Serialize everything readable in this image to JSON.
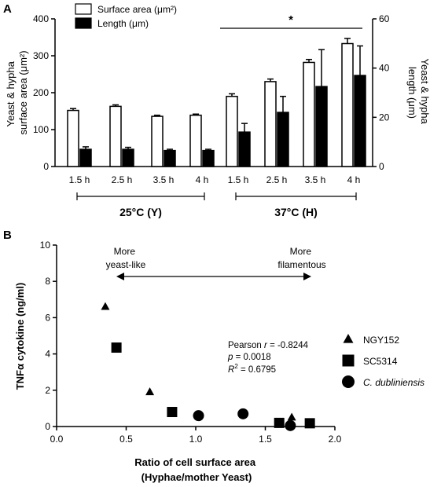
{
  "chart_data": [
    {
      "panel": "A",
      "type": "bar",
      "categories": [
        "1.5 h",
        "2.5 h",
        "3.5 h",
        "4 h",
        "1.5 h",
        "2.5 h",
        "3.5 h",
        "4 h"
      ],
      "groups": [
        {
          "label": "25°C (Y)",
          "from": 0,
          "to": 3
        },
        {
          "label": "37°C (H)",
          "from": 4,
          "to": 7
        }
      ],
      "series": [
        {
          "name": "Surface area (μm²)",
          "axis": "left",
          "fill": "#ffffff",
          "values": [
            152,
            163,
            136,
            139,
            190,
            230,
            282,
            333
          ],
          "errors": [
            5,
            4,
            3,
            3,
            7,
            7,
            8,
            14
          ]
        },
        {
          "name": "Length (μm)",
          "axis": "right",
          "fill": "#000000",
          "values": [
            7,
            7,
            6.5,
            6.5,
            14,
            22,
            32.5,
            37
          ],
          "errors": [
            1,
            0.8,
            0.5,
            0.5,
            3.5,
            6.5,
            15,
            12
          ]
        }
      ],
      "ylabel_left": [
        "Yeast & hypha",
        "surface area (μm²)"
      ],
      "ylabel_right": [
        "Yeast & hypha",
        "length (μm)"
      ],
      "ylim_left": [
        0,
        400
      ],
      "ylim_right": [
        0,
        60
      ],
      "yticks_left": [
        "0",
        "100",
        "200",
        "300",
        "400"
      ],
      "yticks_right": [
        "0",
        "20",
        "40",
        "60"
      ],
      "significance": {
        "symbol": "*",
        "from": 4,
        "to": 7
      },
      "legend": {
        "position": "top-left",
        "entries": [
          "Surface area (μm²)",
          "Length (μm)"
        ]
      },
      "grid": false
    },
    {
      "panel": "B",
      "type": "scatter",
      "xlabel": [
        "Ratio of cell surface area",
        "(Hyphae/mother Yeast)"
      ],
      "ylabel": "TNFα cytokine (ng/ml)",
      "xlim": [
        0,
        2
      ],
      "ylim": [
        0,
        10
      ],
      "xticks": [
        "0.0",
        "0.5",
        "1.0",
        "1.5",
        "2.0"
      ],
      "yticks": [
        "0",
        "2",
        "4",
        "6",
        "8",
        "10"
      ],
      "series": [
        {
          "name": "NGY152",
          "marker": "triangle",
          "points": [
            [
              0.35,
              6.6
            ],
            [
              0.67,
              1.9
            ],
            [
              1.69,
              0.5
            ]
          ]
        },
        {
          "name": "SC5314",
          "marker": "square",
          "points": [
            [
              0.43,
              4.35
            ],
            [
              0.83,
              0.8
            ],
            [
              1.6,
              0.2
            ],
            [
              1.82,
              0.18
            ]
          ]
        },
        {
          "name": "C. dubliniensis",
          "marker": "circle",
          "points": [
            [
              1.02,
              0.6
            ],
            [
              1.34,
              0.7
            ],
            [
              1.68,
              0.05
            ]
          ]
        }
      ],
      "annotations": {
        "left": [
          "More",
          "yeast-like"
        ],
        "right": [
          "More",
          "filamentous"
        ]
      },
      "stats": {
        "pearson_prefix": "Pearson ",
        "pearson_var": "r",
        "pearson_value": " = -0.8244",
        "p_var": "p",
        "p_value": " = 0.0018",
        "r2_var": "R",
        "r2_sup": "2",
        "r2_value": " = 0.6795"
      },
      "legend": {
        "position": "right"
      },
      "grid": false
    }
  ],
  "panels": {
    "a": "A",
    "b": "B"
  }
}
